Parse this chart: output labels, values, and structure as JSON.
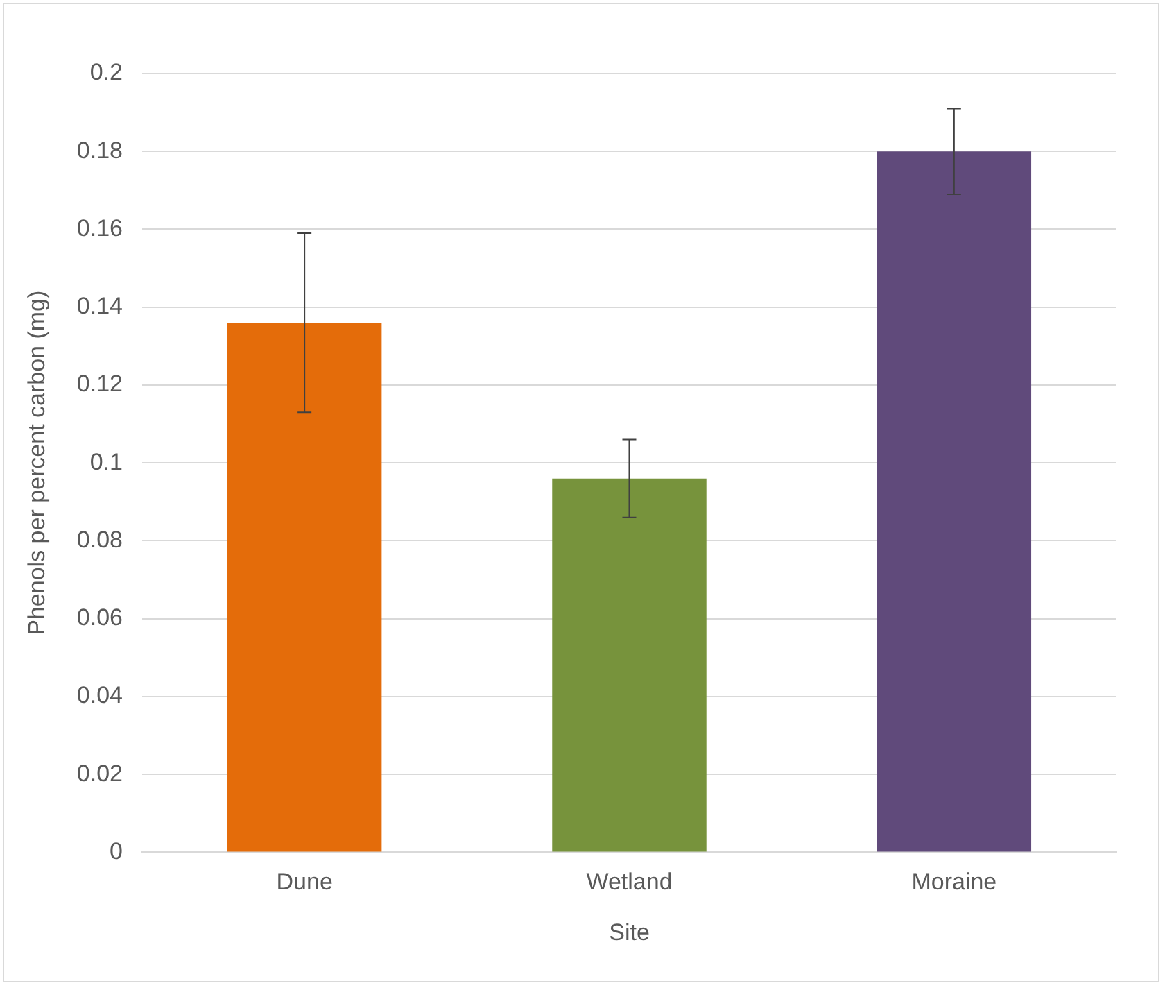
{
  "chart_data": {
    "type": "bar",
    "xlabel": "Site",
    "ylabel": "Phenols per percent carbon (mg)",
    "categories": [
      "Dune",
      "Wetland",
      "Moraine"
    ],
    "values": [
      0.136,
      0.096,
      0.18
    ],
    "colors": [
      "#e46c0a",
      "#77933c",
      "#604a7b"
    ],
    "errors": [
      0.023,
      0.01,
      0.011
    ],
    "ylim": [
      0,
      0.2
    ],
    "yticks": [
      0,
      0.02,
      0.04,
      0.06,
      0.08,
      0.1,
      0.12,
      0.14,
      0.16,
      0.18,
      0.2
    ],
    "grid": "y"
  }
}
